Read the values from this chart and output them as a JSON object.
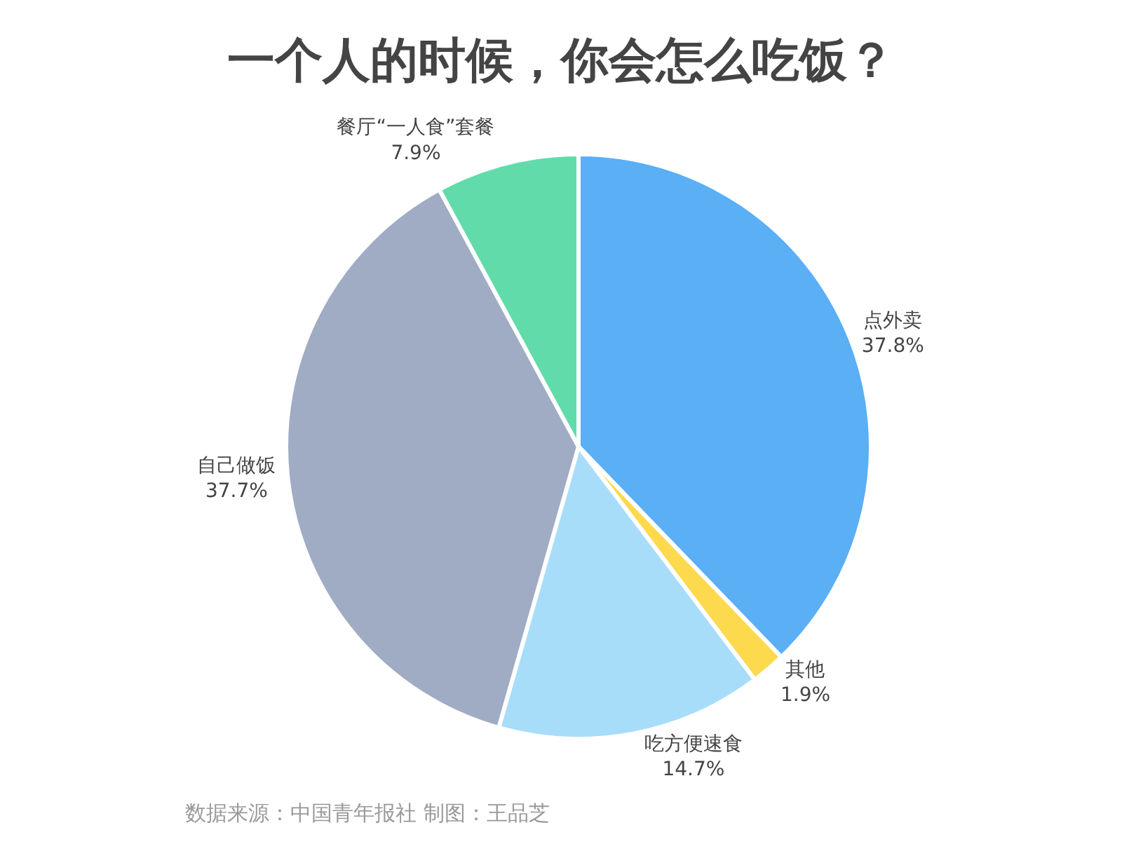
{
  "chart_data": {
    "type": "pie",
    "title": "一个人的时候，你会怎么吃饭？",
    "categories": [
      "点外卖",
      "其他",
      "吃方便速食",
      "自己做饭",
      "餐厅“一人食”套餐"
    ],
    "values": [
      37.8,
      1.9,
      14.7,
      37.7,
      7.9
    ],
    "value_labels": [
      "37.8%",
      "1.9%",
      "14.7%",
      "37.7%",
      "7.9%"
    ],
    "colors": [
      "#5aaff5",
      "#fdd94e",
      "#a8ddfa",
      "#a0acc4",
      "#62dbaa"
    ],
    "legend": false,
    "annotations": [
      "数据来源：中国青年报社 制图：王品芝"
    ]
  }
}
